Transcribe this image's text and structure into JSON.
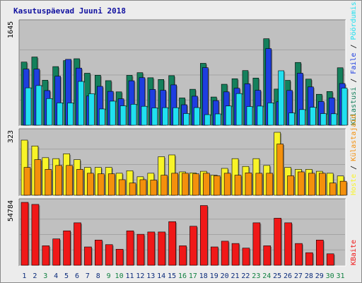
{
  "title": "Kasutuspäevad Juuni 2018",
  "colors": {
    "kulastusi": "#14805c",
    "faile": "#1e3ee0",
    "poordumisi": "#20e0f0",
    "hoste": "#f8f428",
    "kulastajaid": "#f4900c",
    "kbaite": "#f01818",
    "weekend_label": "#108040",
    "weekday_label": "#0a2a7a"
  },
  "chart_data": [
    {
      "type": "bar",
      "panel": "top",
      "ylabel": "1645",
      "ylim": [
        0,
        1645
      ],
      "legend": [
        {
          "name": "Külastusi",
          "color": "#14805c"
        },
        {
          "name": "Faile",
          "color": "#1e3ee0"
        },
        {
          "name": "Pöördumisi",
          "color": "#20e0f0"
        }
      ],
      "categories": [
        "1",
        "2",
        "3",
        "4",
        "5",
        "6",
        "7",
        "8",
        "9",
        "10",
        "11",
        "12",
        "13",
        "14",
        "15",
        "16",
        "17",
        "18",
        "19",
        "20",
        "21",
        "22",
        "23",
        "24",
        "25",
        "26",
        "27",
        "28",
        "29",
        "30",
        "31"
      ],
      "series": [
        {
          "name": "Külastusi",
          "values": [
            1020,
            1102,
            727,
            947,
            1044,
            1074,
            840,
            808,
            720,
            539,
            806,
            849,
            767,
            739,
            801,
            441,
            581,
            1000,
            456,
            662,
            751,
            883,
            762,
            1397,
            584,
            725,
            1014,
            745,
            500,
            545,
            928
          ]
        },
        {
          "name": "Faile",
          "values": [
            907,
            906,
            560,
            792,
            1064,
            923,
            473,
            628,
            547,
            426,
            718,
            768,
            578,
            564,
            652,
            331,
            469,
            930,
            398,
            539,
            597,
            669,
            564,
            1237,
            379,
            562,
            840,
            619,
            383,
            442,
            674
          ]
        },
        {
          "name": "Pöördumisi",
          "values": [
            604,
            641,
            431,
            361,
            360,
            708,
            509,
            263,
            389,
            314,
            339,
            306,
            280,
            284,
            283,
            189,
            285,
            171,
            183,
            311,
            512,
            302,
            309,
            361,
            880,
            199,
            253,
            291,
            188,
            185,
            600
          ]
        }
      ]
    },
    {
      "type": "bar",
      "panel": "middle",
      "ylabel": "323",
      "ylim": [
        0,
        323
      ],
      "legend": [
        {
          "name": "Hoste",
          "color": "#f8f428"
        },
        {
          "name": "Külastajaid",
          "color": "#f4900c"
        }
      ],
      "categories": [
        "1",
        "2",
        "3",
        "4",
        "5",
        "6",
        "7",
        "8",
        "9",
        "10",
        "11",
        "12",
        "13",
        "14",
        "15",
        "16",
        "17",
        "18",
        "19",
        "20",
        "21",
        "22",
        "23",
        "24",
        "25",
        "26",
        "27",
        "28",
        "29",
        "30",
        "31"
      ],
      "series": [
        {
          "name": "Hoste",
          "values": [
            283,
            253,
            193,
            188,
            213,
            183,
            143,
            143,
            143,
            113,
            126,
            95,
            113,
            198,
            207,
            120,
            115,
            123,
            103,
            138,
            188,
            148,
            188,
            153,
            327,
            143,
            133,
            133,
            123,
            113,
            99
          ]
        },
        {
          "name": "Külastajaid",
          "values": [
            143,
            183,
            133,
            153,
            153,
            133,
            113,
            110,
            110,
            80,
            63,
            80,
            78,
            103,
            113,
            113,
            110,
            113,
            100,
            113,
            103,
            115,
            113,
            113,
            263,
            100,
            120,
            113,
            113,
            63,
            72
          ]
        }
      ]
    },
    {
      "type": "bar",
      "panel": "bottom",
      "ylabel": "54784",
      "ylim": [
        0,
        54784
      ],
      "legend": [
        {
          "name": "KBaite",
          "color": "#f01818"
        }
      ],
      "categories": [
        "1",
        "2",
        "3",
        "4",
        "5",
        "6",
        "7",
        "8",
        "9",
        "10",
        "11",
        "12",
        "13",
        "14",
        "15",
        "16",
        "17",
        "18",
        "19",
        "20",
        "21",
        "22",
        "23",
        "24",
        "25",
        "26",
        "27",
        "28",
        "29",
        "30",
        "31"
      ],
      "series": [
        {
          "name": "KBaite",
          "values": [
            55000,
            53000,
            17000,
            23000,
            30000,
            37000,
            16000,
            22000,
            18000,
            14000,
            30000,
            27000,
            29000,
            29000,
            38000,
            17000,
            34000,
            52000,
            16000,
            21000,
            19000,
            15000,
            37000,
            17000,
            41000,
            37000,
            19000,
            11000,
            22000,
            10000,
            null
          ]
        }
      ]
    }
  ],
  "legend_separator": "/",
  "xaxis": {
    "labels": [
      "1",
      "2",
      "3",
      "4",
      "5",
      "6",
      "7",
      "8",
      "9",
      "10",
      "11",
      "12",
      "13",
      "14",
      "15",
      "16",
      "17",
      "18",
      "19",
      "20",
      "21",
      "22",
      "23",
      "24",
      "25",
      "26",
      "27",
      "28",
      "29",
      "30",
      "31"
    ],
    "weekend": [
      false,
      false,
      true,
      false,
      false,
      false,
      false,
      false,
      true,
      true,
      false,
      false,
      false,
      false,
      false,
      true,
      true,
      false,
      false,
      false,
      false,
      false,
      true,
      true,
      false,
      false,
      false,
      false,
      false,
      true,
      true
    ]
  }
}
